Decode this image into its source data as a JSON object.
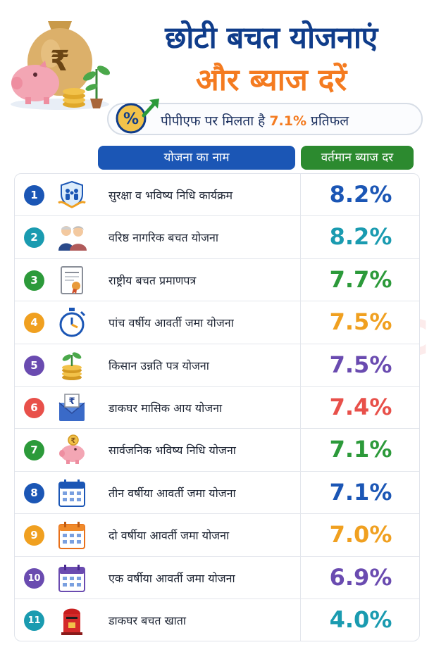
{
  "header": {
    "title_line1": "छोटी बचत योजनाएं",
    "title_line2": "और ब्याज दरें",
    "ppf_text": "पीपीएफ पर मिलता है ",
    "ppf_rate": "7.1%",
    "ppf_suffix": " प्रतिफल",
    "percent_symbol": "%",
    "rupee_symbol": "₹"
  },
  "columns": {
    "name": "योजना का नाम",
    "rate": "वर्तमान ब्याज दर"
  },
  "watermark": "thesootr.com",
  "schemes": [
    {
      "num": "1",
      "name": "सुरक्षा व भविष्य निधि कार्यक्रम",
      "rate": "8.2%",
      "badge_color": "#1b56b5",
      "rate_color": "#1b56b5",
      "icon": "family-shield-icon"
    },
    {
      "num": "2",
      "name": "वरिष्ठ नागरिक बचत योजना",
      "rate": "8.2%",
      "badge_color": "#1a9bb0",
      "rate_color": "#1a9bb0",
      "icon": "senior-couple-icon"
    },
    {
      "num": "3",
      "name": "राष्ट्रीय बचत प्रमाणपत्र",
      "rate": "7.7%",
      "badge_color": "#2c9a3a",
      "rate_color": "#2c9a3a",
      "icon": "certificate-icon"
    },
    {
      "num": "4",
      "name": "पांच वर्षीय आवर्ती जमा योजना",
      "rate": "7.5%",
      "badge_color": "#f0a020",
      "rate_color": "#f0a020",
      "icon": "stopwatch-icon"
    },
    {
      "num": "5",
      "name": "किसान उन्नति पत्र योजना",
      "rate": "7.5%",
      "badge_color": "#6a4bb0",
      "rate_color": "#6a4bb0",
      "icon": "coins-plant-icon"
    },
    {
      "num": "6",
      "name": "डाकघर मासिक आय योजना",
      "rate": "7.4%",
      "badge_color": "#e8504a",
      "rate_color": "#e8504a",
      "icon": "rupee-envelope-icon"
    },
    {
      "num": "7",
      "name": "सार्वजनिक भविष्य निधि योजना",
      "rate": "7.1%",
      "badge_color": "#2c9a3a",
      "rate_color": "#2c9a3a",
      "icon": "piggy-bank-icon"
    },
    {
      "num": "8",
      "name": "तीन वर्षीया आवर्ती जमा योजना",
      "rate": "7.1%",
      "badge_color": "#1b56b5",
      "rate_color": "#1b56b5",
      "icon": "calendar-blue-icon"
    },
    {
      "num": "9",
      "name": "दो वर्षीया आवर्ती जमा योजना",
      "rate": "7.0%",
      "badge_color": "#f0a020",
      "rate_color": "#f0a020",
      "icon": "calendar-orange-icon"
    },
    {
      "num": "10",
      "name": "एक वर्षीया आवर्ती जमा योजना",
      "rate": "6.9%",
      "badge_color": "#6a4bb0",
      "rate_color": "#6a4bb0",
      "icon": "calendar-purple-icon"
    },
    {
      "num": "11",
      "name": "डाकघर बचत खाता",
      "rate": "4.0%",
      "badge_color": "#1a9bb0",
      "rate_color": "#1a9bb0",
      "icon": "post-box-icon"
    }
  ]
}
